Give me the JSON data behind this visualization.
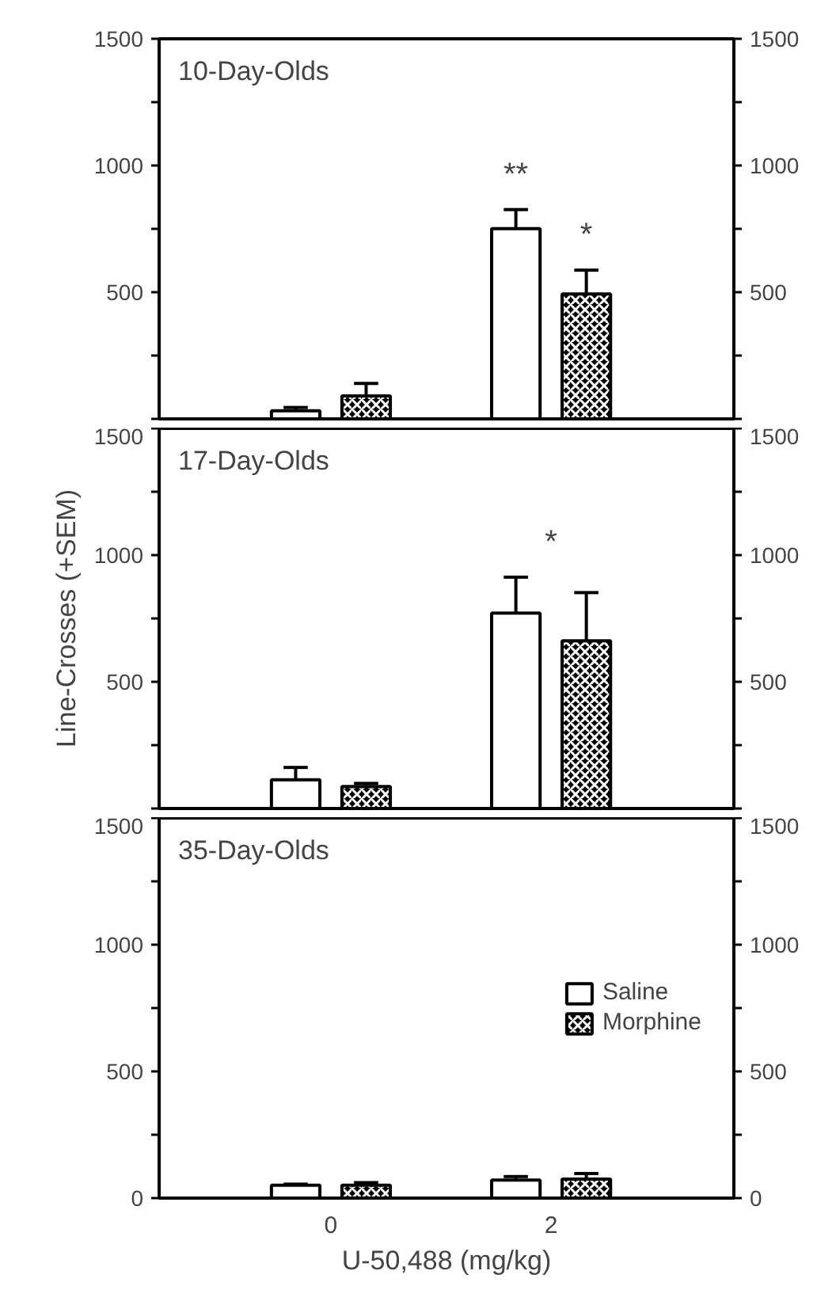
{
  "chart_data": [
    {
      "type": "bar",
      "title": "10-Day-Olds",
      "categories": [
        "0",
        "2"
      ],
      "series": [
        {
          "color": "#ffffff",
          "values": [
            32,
            751
          ],
          "errors": [
            [
              32,
              45
            ],
            [
              751,
              826
            ]
          ]
        },
        {
          "color": "#000000",
          "values": [
            91,
            493
          ],
          "errors": [
            [
              91,
              140
            ],
            [
              493,
              587
            ]
          ]
        }
      ],
      "annotations": [
        "**",
        "*"
      ],
      "ylim": [
        0,
        1500
      ],
      "yticks": [
        {
          "value": 0,
          "label": null
        },
        {
          "value": 250,
          "label": null
        },
        500,
        {
          "value": 750,
          "label": null
        },
        1000,
        {
          "value": 1250,
          "label": null
        },
        1500
      ],
      "y2lim": [
        0,
        1500
      ],
      "y2ticks": [
        {
          "value": 0,
          "label": null
        },
        {
          "value": 250,
          "label": null
        },
        500,
        {
          "value": 750,
          "label": null
        },
        1000,
        {
          "value": 1250,
          "label": null
        },
        1500
      ],
      "tick_labels": "y"
    },
    {
      "type": "bar",
      "title": "17-Day-Olds",
      "ylabel": "Line-Crosses (+SEM)",
      "categories": [
        "0",
        "2"
      ],
      "series": [
        {
          "color": "#ffffff",
          "values": [
            113,
            771
          ],
          "errors": [
            [
              113,
              162
            ],
            [
              771,
              913
            ]
          ]
        },
        {
          "color": "#000000",
          "values": [
            87,
            662
          ],
          "errors": [
            [
              87,
              99
            ],
            [
              662,
              852
            ]
          ]
        }
      ],
      "annotations": [
        "*"
      ],
      "ylim": [
        0,
        1500
      ],
      "yticks": [
        {
          "value": 0,
          "label": null
        },
        {
          "value": 250,
          "label": null
        },
        500,
        {
          "value": 750,
          "label": null
        },
        1000,
        {
          "value": 1250,
          "label": null
        },
        1500
      ],
      "y2lim": [
        0,
        1500
      ],
      "y2ticks": [
        {
          "value": 0,
          "label": null
        },
        {
          "value": 250,
          "label": null
        },
        500,
        {
          "value": 750,
          "label": null
        },
        1000,
        {
          "value": 1250,
          "label": null
        },
        1500
      ],
      "tick_labels": "y"
    },
    {
      "type": "bar",
      "title": "35-Day-Olds",
      "xlabel": "U-50,488 (mg/kg)",
      "categories": [
        "0",
        "2"
      ],
      "series": [
        {
          "name": "Saline",
          "color": "#ffffff",
          "values": [
            51,
            71
          ],
          "errors": [
            [
              51,
              55
            ],
            [
              71,
              85
            ]
          ]
        },
        {
          "name": "Morphine",
          "color": "#000000",
          "values": [
            51,
            75
          ],
          "errors": [
            [
              51,
              61
            ],
            [
              75,
              97
            ]
          ]
        }
      ],
      "ylim": [
        0,
        1500
      ],
      "yticks": [
        0,
        {
          "value": 250,
          "label": null
        },
        500,
        {
          "value": 750,
          "label": null
        },
        1000,
        {
          "value": 1250,
          "label": null
        },
        1500
      ],
      "y2lim": [
        0,
        1500
      ],
      "y2ticks": [
        0,
        {
          "value": 250,
          "label": null
        },
        500,
        {
          "value": 750,
          "label": null
        },
        1000,
        {
          "value": 1250,
          "label": null
        },
        1500
      ],
      "legend": "right"
    }
  ]
}
